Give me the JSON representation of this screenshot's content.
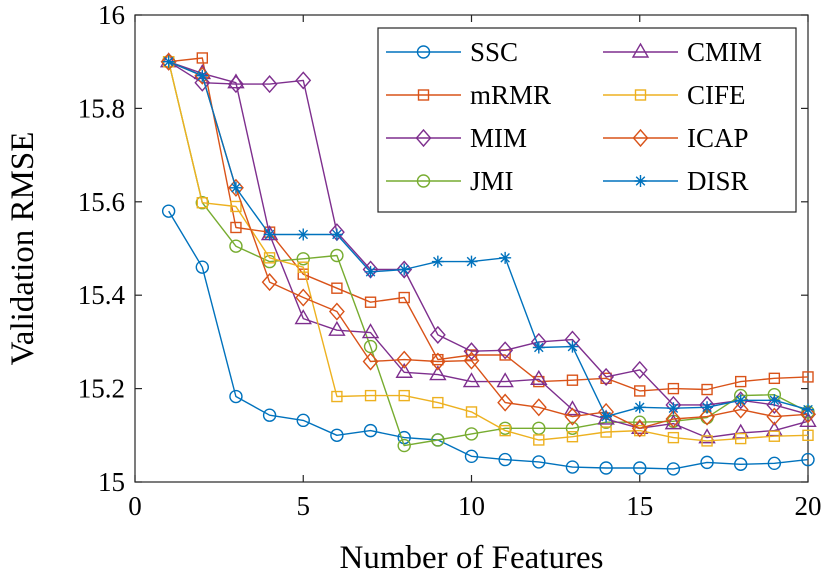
{
  "chart_data": {
    "type": "line",
    "title": "",
    "xlabel": "Number of Features",
    "ylabel": "Validation RMSE",
    "xlim": [
      0,
      20
    ],
    "ylim": [
      15,
      16
    ],
    "xticks": [
      0,
      5,
      10,
      15,
      20
    ],
    "yticks": [
      15,
      15.2,
      15.4,
      15.6,
      15.8,
      16
    ],
    "xtick_labels": [
      "0",
      "5",
      "10",
      "15",
      "20"
    ],
    "ytick_labels": [
      "15",
      "15.2",
      "15.4",
      "15.6",
      "15.8",
      "16"
    ],
    "grid": false,
    "legend_position": "top-right",
    "x": [
      1,
      2,
      3,
      4,
      5,
      6,
      7,
      8,
      9,
      10,
      11,
      12,
      13,
      14,
      15,
      16,
      17,
      18,
      19,
      20
    ],
    "series": [
      {
        "name": "SSC",
        "color": "#0072BD",
        "marker": "circle",
        "values": [
          15.58,
          15.46,
          15.183,
          15.143,
          15.132,
          15.1,
          15.11,
          15.095,
          15.09,
          15.055,
          15.048,
          15.043,
          15.032,
          15.03,
          15.03,
          15.028,
          15.042,
          15.038,
          15.04,
          15.048
        ]
      },
      {
        "name": "mRMR",
        "color": "#D95319",
        "marker": "square",
        "values": [
          15.9,
          15.908,
          15.545,
          15.535,
          15.445,
          15.415,
          15.385,
          15.395,
          15.262,
          15.272,
          15.272,
          15.215,
          15.218,
          15.222,
          15.195,
          15.2,
          15.198,
          15.215,
          15.222,
          15.225
        ]
      },
      {
        "name": "MIM",
        "color": "#7E2F8E",
        "marker": "diamond",
        "values": [
          15.9,
          15.855,
          15.852,
          15.852,
          15.86,
          15.535,
          15.455,
          15.455,
          15.315,
          15.28,
          15.282,
          15.3,
          15.305,
          15.225,
          15.24,
          15.165,
          15.165,
          15.175,
          15.165,
          15.145
        ]
      },
      {
        "name": "JMI",
        "color": "#77AC30",
        "marker": "circle",
        "values": [
          15.9,
          15.598,
          15.505,
          15.472,
          15.478,
          15.485,
          15.29,
          15.078,
          15.09,
          15.103,
          15.115,
          15.115,
          15.115,
          15.128,
          15.128,
          15.13,
          15.138,
          15.185,
          15.187,
          15.15
        ]
      },
      {
        "name": "CMIM",
        "color": "#7E2F8E",
        "marker": "triangle",
        "values": [
          15.9,
          15.875,
          15.855,
          15.53,
          15.35,
          15.325,
          15.32,
          15.235,
          15.23,
          15.215,
          15.215,
          15.22,
          15.155,
          15.135,
          15.115,
          15.125,
          15.095,
          15.105,
          15.11,
          15.13
        ]
      },
      {
        "name": "CIFE",
        "color": "#EDB120",
        "marker": "square",
        "values": [
          15.9,
          15.598,
          15.59,
          15.48,
          15.46,
          15.183,
          15.185,
          15.185,
          15.17,
          15.15,
          15.11,
          15.09,
          15.097,
          15.107,
          15.11,
          15.095,
          15.088,
          15.093,
          15.098,
          15.1
        ]
      },
      {
        "name": "ICAP",
        "color": "#D95319",
        "marker": "diamond",
        "values": [
          15.9,
          15.87,
          15.63,
          15.428,
          15.395,
          15.365,
          15.258,
          15.262,
          15.258,
          15.26,
          15.17,
          15.16,
          15.14,
          15.15,
          15.115,
          15.135,
          15.14,
          15.155,
          15.14,
          15.145
        ]
      },
      {
        "name": "DISR",
        "color": "#0072BD",
        "marker": "star",
        "values": [
          15.9,
          15.87,
          15.63,
          15.53,
          15.53,
          15.53,
          15.45,
          15.455,
          15.472,
          15.472,
          15.48,
          15.288,
          15.29,
          15.14,
          15.16,
          15.158,
          15.16,
          15.175,
          15.175,
          15.155
        ]
      }
    ]
  }
}
